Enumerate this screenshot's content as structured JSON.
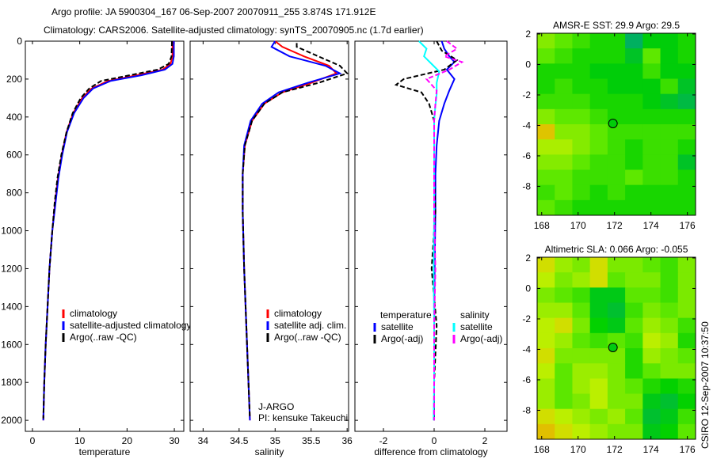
{
  "header": {
    "title_line1": "Argo profile: JA 5900304_167 06-Sep-2007 20070911_255 3.874S 171.912E",
    "title_line2": "Climatology: CARS2006. Satellite-adjusted climatology: synTS_20070905.nc (1.7d earlier)"
  },
  "side_label": "CSIRO 12-Sep-2007 10:37:50",
  "colors": {
    "red": "#ff0000",
    "blue": "#0000ff",
    "black": "#000000",
    "cyan": "#00ffff",
    "magenta": "#ff00ff"
  },
  "chart_data": [
    {
      "type": "line",
      "xlabel": "temperature",
      "ylabel": "",
      "xlim": [
        -1.5,
        32
      ],
      "ylim": [
        2058,
        0
      ],
      "xticks": [
        0,
        10,
        20,
        30
      ],
      "yticks": [
        0,
        200,
        400,
        600,
        800,
        1000,
        1200,
        1400,
        1600,
        1800,
        2000
      ],
      "legend": {
        "position": "bottom-right",
        "entries": [
          "climatology",
          "satellite-adjusted climatology",
          "Argo(..raw -QC)"
        ]
      },
      "series": [
        {
          "name": "climatology",
          "color": "red",
          "dash": false,
          "x": [
            29.6,
            29.6,
            29.2,
            27.5,
            22,
            16,
            12.5,
            10.5,
            8.6,
            7.2,
            6.2,
            5.4,
            4.8,
            4.2,
            3.6,
            3.2,
            2.8,
            2.5,
            2.3
          ],
          "y": [
            0,
            80,
            120,
            150,
            180,
            210,
            250,
            300,
            380,
            480,
            600,
            720,
            850,
            1000,
            1200,
            1400,
            1600,
            1800,
            2000
          ]
        },
        {
          "name": "satellite-adjusted climatology",
          "color": "blue",
          "dash": false,
          "x": [
            29.9,
            29.9,
            29.6,
            28,
            23,
            16.5,
            12.8,
            10.8,
            8.8,
            7.3,
            6.3,
            5.5,
            4.9,
            4.2,
            3.6,
            3.2,
            2.8,
            2.5,
            2.3
          ],
          "y": [
            0,
            80,
            120,
            150,
            180,
            210,
            250,
            300,
            380,
            480,
            600,
            720,
            850,
            1000,
            1200,
            1400,
            1600,
            1800,
            2000
          ]
        },
        {
          "name": "Argo(..raw -QC)",
          "color": "black",
          "dash": true,
          "x": [
            29.5,
            29.4,
            28.8,
            26.5,
            20.5,
            14.5,
            12,
            10.2,
            8.5,
            7.2,
            6.1,
            5.3,
            4.7,
            4.2,
            3.6,
            3.2,
            2.8,
            2.5,
            2.3
          ],
          "y": [
            0,
            80,
            120,
            150,
            180,
            210,
            250,
            300,
            380,
            480,
            600,
            720,
            850,
            1000,
            1200,
            1400,
            1600,
            1800,
            1990
          ]
        }
      ]
    },
    {
      "type": "line",
      "xlabel": "salinity",
      "xlim": [
        33.82,
        36.02
      ],
      "ylim": [
        2058,
        0
      ],
      "xticks": [
        34,
        34.5,
        35,
        35.5,
        36
      ],
      "legend": {
        "position": "bottom-right",
        "entries": [
          "climatology",
          "satellite adj. clim.",
          "Argo(..raw -QC)"
        ]
      },
      "annotation": [
        "J-ARGO",
        "PI: kensuke Takeuchi"
      ],
      "series": [
        {
          "name": "climatology",
          "color": "red",
          "dash": false,
          "x": [
            35.0,
            35.1,
            35.4,
            35.75,
            35.85,
            35.5,
            35.1,
            34.85,
            34.68,
            34.58,
            34.55,
            34.55,
            34.57,
            34.6,
            34.63,
            34.65
          ],
          "y": [
            0,
            30,
            80,
            130,
            170,
            220,
            270,
            330,
            420,
            550,
            700,
            900,
            1200,
            1500,
            1800,
            2000
          ]
        },
        {
          "name": "satellite adj. clim.",
          "color": "blue",
          "dash": false,
          "x": [
            35.0,
            34.95,
            35.2,
            35.7,
            35.9,
            35.45,
            35.05,
            34.82,
            34.66,
            34.57,
            34.55,
            34.55,
            34.57,
            34.6,
            34.63,
            34.65
          ],
          "y": [
            0,
            30,
            80,
            130,
            170,
            220,
            270,
            330,
            420,
            550,
            700,
            900,
            1200,
            1500,
            1800,
            2000
          ]
        },
        {
          "name": "Argo(..raw -QC)",
          "color": "black",
          "dash": true,
          "x": [
            35.3,
            35.3,
            35.6,
            35.9,
            36.0,
            35.6,
            35.1,
            34.85,
            34.68,
            34.58,
            34.55,
            34.55,
            34.57,
            34.6,
            34.63,
            34.65
          ],
          "y": [
            10,
            30,
            80,
            130,
            170,
            220,
            270,
            330,
            420,
            550,
            700,
            900,
            1200,
            1500,
            1800,
            1990
          ]
        }
      ]
    },
    {
      "type": "line",
      "xlabel": "difference from climatology",
      "xlim": [
        -3.125,
        2.875
      ],
      "ylim": [
        2058,
        0
      ],
      "xticks": [
        -2,
        0,
        2
      ],
      "legend": {
        "position": "bottom",
        "entries": [
          "temperature",
          "satellite",
          "Argo(-adj)",
          "salinity",
          "satellite",
          "Argo(-adj)"
        ]
      },
      "series": [
        {
          "name": "temperature satellite",
          "color": "blue",
          "dash": false,
          "x": [
            0.3,
            0.4,
            0.6,
            0.8,
            0.5,
            0.8,
            0.6,
            0.4,
            0.2,
            0.1,
            0.05,
            0.05,
            0.02,
            0,
            0,
            0
          ],
          "y": [
            0,
            40,
            80,
            110,
            150,
            200,
            260,
            330,
            420,
            550,
            700,
            900,
            1200,
            1500,
            1800,
            2000
          ]
        },
        {
          "name": "temperature Argo(-adj)",
          "color": "black",
          "dash": true,
          "x": [
            0.1,
            0.3,
            0.9,
            0.4,
            -1.2,
            -1.5,
            -0.5,
            -0.2,
            0,
            0,
            0,
            0.05,
            -0.1,
            0.1,
            0,
            0
          ],
          "y": [
            0,
            50,
            100,
            150,
            200,
            230,
            270,
            330,
            420,
            550,
            700,
            900,
            1200,
            1500,
            1800,
            2000
          ]
        },
        {
          "name": "salinity satellite",
          "color": "cyan",
          "dash": false,
          "x": [
            -0.6,
            -0.3,
            -0.4,
            -0.1,
            0.2,
            0.1,
            0.1,
            0.05,
            0,
            0,
            0,
            0,
            -0.02,
            0,
            0,
            -0.02
          ],
          "y": [
            0,
            40,
            80,
            120,
            160,
            220,
            280,
            340,
            420,
            550,
            700,
            900,
            1200,
            1500,
            1800,
            2000
          ]
        },
        {
          "name": "salinity Argo(-adj)",
          "color": "magenta",
          "dash": true,
          "x": [
            0.5,
            0.9,
            0.4,
            1.1,
            0.6,
            -0.3,
            0.1,
            0.05,
            0,
            0,
            0,
            0,
            0.05,
            0,
            0,
            0
          ],
          "y": [
            0,
            40,
            80,
            110,
            150,
            200,
            260,
            330,
            420,
            550,
            700,
            900,
            1200,
            1500,
            1800,
            2000
          ]
        }
      ]
    },
    {
      "type": "heatmap",
      "title": "AMSR-E SST: 29.9 Argo: 29.5",
      "xlim": [
        167.75,
        176.45
      ],
      "ylim": [
        -9.9,
        2.05
      ],
      "xticks": [
        168,
        170,
        172,
        174,
        176
      ],
      "yticks": [
        2,
        0,
        -2,
        -4,
        -6,
        -8
      ],
      "crange": [
        29.2,
        30.3
      ],
      "marker": {
        "lon": 171.912,
        "lat": -3.874,
        "value": 29.5
      },
      "grid": [
        [
          29.9,
          29.8,
          29.7,
          29.6,
          29.6,
          29.2,
          29.5,
          29.5,
          29.6
        ],
        [
          29.8,
          29.7,
          29.6,
          29.6,
          29.6,
          29.4,
          29.8,
          29.5,
          29.6
        ],
        [
          29.6,
          29.6,
          29.6,
          29.5,
          29.5,
          29.5,
          29.7,
          29.5,
          29.5
        ],
        [
          29.6,
          29.7,
          29.6,
          29.6,
          29.5,
          29.5,
          29.5,
          29.7,
          29.4
        ],
        [
          29.7,
          29.7,
          29.7,
          29.6,
          29.6,
          29.6,
          29.5,
          29.4,
          29.3
        ],
        [
          29.9,
          29.8,
          29.8,
          29.7,
          29.6,
          29.6,
          29.6,
          29.6,
          29.6
        ],
        [
          30.2,
          29.9,
          29.9,
          29.8,
          29.7,
          29.7,
          29.7,
          29.7,
          29.7
        ],
        [
          30.0,
          30.0,
          29.9,
          29.8,
          29.7,
          29.6,
          29.7,
          29.7,
          29.6
        ],
        [
          29.9,
          29.9,
          29.8,
          29.7,
          29.7,
          29.6,
          29.7,
          29.7,
          29.4
        ],
        [
          29.8,
          29.8,
          29.7,
          29.7,
          29.7,
          29.8,
          29.7,
          29.7,
          29.6
        ],
        [
          29.7,
          29.8,
          29.7,
          29.6,
          29.7,
          29.6,
          29.6,
          29.6,
          29.6
        ],
        [
          29.8,
          29.7,
          29.6,
          29.6,
          29.6,
          29.6,
          29.6,
          29.6,
          29.6
        ]
      ]
    },
    {
      "type": "heatmap",
      "title": "Altimetric SLA: 0.066 Argo: -0.055",
      "xlim": [
        167.75,
        176.45
      ],
      "ylim": [
        -9.9,
        2.05
      ],
      "xticks": [
        168,
        170,
        172,
        174,
        176
      ],
      "yticks": [
        2,
        0,
        -2,
        -4,
        -6,
        -8
      ],
      "crange": [
        -0.12,
        0.14
      ],
      "marker": {
        "lon": 171.912,
        "lat": -3.874,
        "value": -0.055
      },
      "grid": [
        [
          0.1,
          0.06,
          0.04,
          0.1,
          0.04,
          0.04,
          0.02,
          0.0,
          0.04
        ],
        [
          0.08,
          0.04,
          0.06,
          0.1,
          0.02,
          0.04,
          0.04,
          0.0,
          0.04
        ],
        [
          0.04,
          0.02,
          0.0,
          -0.06,
          -0.06,
          0.02,
          0.02,
          0.0,
          0.04
        ],
        [
          0.06,
          0.06,
          0.02,
          -0.06,
          -0.08,
          0.0,
          0.04,
          0.02,
          0.04
        ],
        [
          0.08,
          0.1,
          0.04,
          -0.04,
          -0.06,
          0.02,
          0.06,
          0.04,
          0.0
        ],
        [
          0.08,
          0.06,
          0.02,
          0.0,
          0.02,
          0.0,
          0.08,
          0.06,
          -0.02
        ],
        [
          0.1,
          0.04,
          0.04,
          0.04,
          0.04,
          -0.02,
          0.06,
          0.04,
          0.02
        ],
        [
          0.08,
          0.02,
          0.06,
          0.06,
          0.04,
          -0.02,
          0.02,
          0.04,
          0.04
        ],
        [
          0.06,
          0.02,
          0.06,
          0.08,
          0.04,
          0.02,
          -0.02,
          -0.04,
          -0.02
        ],
        [
          0.06,
          0.02,
          0.04,
          0.08,
          0.04,
          0.04,
          -0.06,
          -0.08,
          -0.04
        ],
        [
          0.1,
          0.08,
          0.06,
          0.04,
          0.06,
          0.02,
          -0.08,
          -0.06,
          0.0
        ],
        [
          0.12,
          0.1,
          0.08,
          0.06,
          0.04,
          0.04,
          -0.06,
          -0.04,
          0.02
        ]
      ]
    }
  ]
}
